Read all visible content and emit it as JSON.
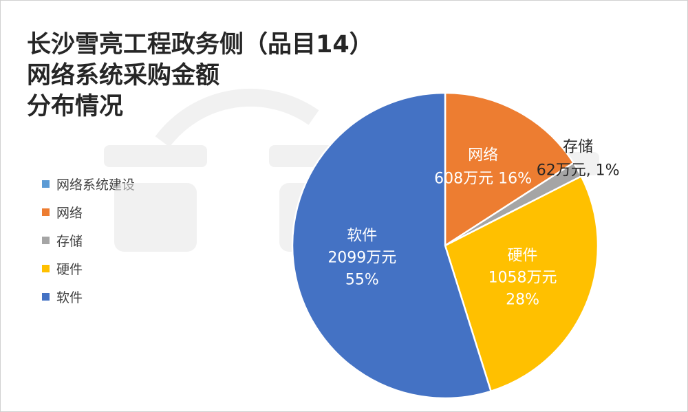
{
  "title_lines": [
    "长沙雪亮工程政务侧（品目14）",
    "网络系统采购金额",
    "分布情况"
  ],
  "chart_data": {
    "type": "pie",
    "title": "长沙雪亮工程政务侧（品目14）网络系统采购金额分布情况",
    "legend_position": "left",
    "slices": [
      {
        "name": "网络系统建设",
        "amount_label": "",
        "percent_label": "",
        "value": 0,
        "color": "#5B9BD5"
      },
      {
        "name": "网络",
        "amount_label": "608万元",
        "percent_label": "16%",
        "value": 608,
        "color": "#ED7D31"
      },
      {
        "name": "存储",
        "amount_label": "62万元",
        "percent_label": "1%",
        "value": 62,
        "color": "#A5A5A5"
      },
      {
        "name": "硬件",
        "amount_label": "1058万元",
        "percent_label": "28%",
        "value": 1058,
        "color": "#FFC000"
      },
      {
        "name": "软件",
        "amount_label": "2099万元",
        "percent_label": "55%",
        "value": 2099,
        "color": "#4472C4"
      }
    ]
  }
}
